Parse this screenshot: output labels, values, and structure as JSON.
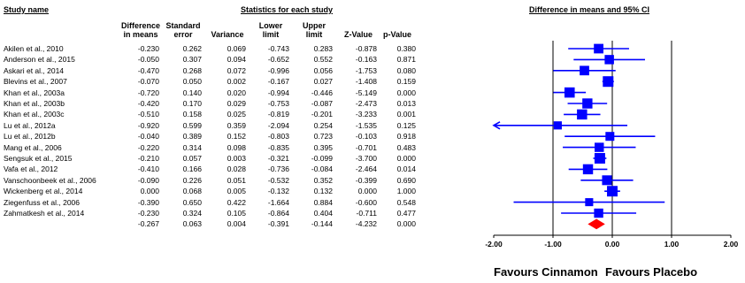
{
  "header": {
    "study_name": "Study name",
    "stats_title": "Statistics for each study",
    "plot_title": "Difference in means and 95% CI"
  },
  "columns": [
    {
      "line1": "Difference",
      "line2": "in means"
    },
    {
      "line1": "Standard",
      "line2": "error"
    },
    {
      "line1": "Variance",
      "line2": ""
    },
    {
      "line1": "Lower",
      "line2": "limit"
    },
    {
      "line1": "Upper",
      "line2": "limit"
    },
    {
      "line1": "Z-Value",
      "line2": ""
    },
    {
      "line1": "p-Value",
      "line2": ""
    }
  ],
  "rows": [
    {
      "study": "Akilen et al., 2010",
      "diff": "-0.230",
      "se": "0.262",
      "var": "0.069",
      "lower": "-0.743",
      "upper": "0.283",
      "z": "-0.878",
      "p": "0.380"
    },
    {
      "study": "Anderson et al., 2015",
      "diff": "-0.050",
      "se": "0.307",
      "var": "0.094",
      "lower": "-0.652",
      "upper": "0.552",
      "z": "-0.163",
      "p": "0.871"
    },
    {
      "study": "Askari et al., 2014",
      "diff": "-0.470",
      "se": "0.268",
      "var": "0.072",
      "lower": "-0.996",
      "upper": "0.056",
      "z": "-1.753",
      "p": "0.080"
    },
    {
      "study": "Blevins et al., 2007",
      "diff": "-0.070",
      "se": "0.050",
      "var": "0.002",
      "lower": "-0.167",
      "upper": "0.027",
      "z": "-1.408",
      "p": "0.159"
    },
    {
      "study": "Khan et al., 2003a",
      "diff": "-0.720",
      "se": "0.140",
      "var": "0.020",
      "lower": "-0.994",
      "upper": "-0.446",
      "z": "-5.149",
      "p": "0.000"
    },
    {
      "study": "Khan et al., 2003b",
      "diff": "-0.420",
      "se": "0.170",
      "var": "0.029",
      "lower": "-0.753",
      "upper": "-0.087",
      "z": "-2.473",
      "p": "0.013"
    },
    {
      "study": "Khan et al., 2003c",
      "diff": "-0.510",
      "se": "0.158",
      "var": "0.025",
      "lower": "-0.819",
      "upper": "-0.201",
      "z": "-3.233",
      "p": "0.001"
    },
    {
      "study": "Lu et al., 2012a",
      "diff": "-0.920",
      "se": "0.599",
      "var": "0.359",
      "lower": "-2.094",
      "upper": "0.254",
      "z": "-1.535",
      "p": "0.125"
    },
    {
      "study": "Lu et al., 2012b",
      "diff": "-0.040",
      "se": "0.389",
      "var": "0.152",
      "lower": "-0.803",
      "upper": "0.723",
      "z": "-0.103",
      "p": "0.918"
    },
    {
      "study": "Mang et al., 2006",
      "diff": "-0.220",
      "se": "0.314",
      "var": "0.098",
      "lower": "-0.835",
      "upper": "0.395",
      "z": "-0.701",
      "p": "0.483"
    },
    {
      "study": "Sengsuk et al., 2015",
      "diff": "-0.210",
      "se": "0.057",
      "var": "0.003",
      "lower": "-0.321",
      "upper": "-0.099",
      "z": "-3.700",
      "p": "0.000"
    },
    {
      "study": "Vafa et al., 2012",
      "diff": "-0.410",
      "se": "0.166",
      "var": "0.028",
      "lower": "-0.736",
      "upper": "-0.084",
      "z": "-2.464",
      "p": "0.014"
    },
    {
      "study": "Vanschoonbeek et al., 2006",
      "diff": "-0.090",
      "se": "0.226",
      "var": "0.051",
      "lower": "-0.532",
      "upper": "0.352",
      "z": "-0.399",
      "p": "0.690"
    },
    {
      "study": "Wickenberg et al., 2014",
      "diff": "0.000",
      "se": "0.068",
      "var": "0.005",
      "lower": "-0.132",
      "upper": "0.132",
      "z": "0.000",
      "p": "1.000"
    },
    {
      "study": "Ziegenfuss et al., 2006",
      "diff": "-0.390",
      "se": "0.650",
      "var": "0.422",
      "lower": "-1.664",
      "upper": "0.884",
      "z": "-0.600",
      "p": "0.548"
    },
    {
      "study": "Zahmatkesh et al., 2014",
      "diff": "-0.230",
      "se": "0.324",
      "var": "0.105",
      "lower": "-0.864",
      "upper": "0.404",
      "z": "-0.711",
      "p": "0.477"
    }
  ],
  "summary": {
    "study": "",
    "diff": "-0.267",
    "se": "0.063",
    "var": "0.004",
    "lower": "-0.391",
    "upper": "-0.144",
    "z": "-4.232",
    "p": "0.000"
  },
  "footer": {
    "left": "Favours Cinnamon",
    "right": "Favours Placebo"
  },
  "chart_data": {
    "type": "forest",
    "title": "Difference in means and 95% CI",
    "xlim": [
      -2.0,
      2.0
    ],
    "xticks": [
      -2.0,
      -1.0,
      0.0,
      1.0,
      2.0
    ],
    "tick_labels": [
      "-2.00",
      "-1.00",
      "0.00",
      "1.00",
      "2.00"
    ],
    "colors": {
      "study": "#0000ff",
      "summary": "#ff0000",
      "axis": "#000000"
    },
    "points": [
      {
        "study": "Akilen et al., 2010",
        "estimate": -0.23,
        "lower": -0.743,
        "upper": 0.283,
        "weight": 0.069
      },
      {
        "study": "Anderson et al., 2015",
        "estimate": -0.05,
        "lower": -0.652,
        "upper": 0.552,
        "weight": 0.094
      },
      {
        "study": "Askari et al., 2014",
        "estimate": -0.47,
        "lower": -0.996,
        "upper": 0.056,
        "weight": 0.072
      },
      {
        "study": "Blevins et al., 2007",
        "estimate": -0.07,
        "lower": -0.167,
        "upper": 0.027,
        "weight": 0.002
      },
      {
        "study": "Khan et al., 2003a",
        "estimate": -0.72,
        "lower": -0.994,
        "upper": -0.446,
        "weight": 0.02
      },
      {
        "study": "Khan et al., 2003b",
        "estimate": -0.42,
        "lower": -0.753,
        "upper": -0.087,
        "weight": 0.029
      },
      {
        "study": "Khan et al., 2003c",
        "estimate": -0.51,
        "lower": -0.819,
        "upper": -0.201,
        "weight": 0.025
      },
      {
        "study": "Lu et al., 2012a",
        "estimate": -0.92,
        "lower": -2.094,
        "upper": 0.254,
        "weight": 0.359
      },
      {
        "study": "Lu et al., 2012b",
        "estimate": -0.04,
        "lower": -0.803,
        "upper": 0.723,
        "weight": 0.152
      },
      {
        "study": "Mang et al., 2006",
        "estimate": -0.22,
        "lower": -0.835,
        "upper": 0.395,
        "weight": 0.098
      },
      {
        "study": "Sengsuk et al., 2015",
        "estimate": -0.21,
        "lower": -0.321,
        "upper": -0.099,
        "weight": 0.003
      },
      {
        "study": "Vafa et al., 2012",
        "estimate": -0.41,
        "lower": -0.736,
        "upper": -0.084,
        "weight": 0.028
      },
      {
        "study": "Vanschoonbeek et al., 2006",
        "estimate": -0.09,
        "lower": -0.532,
        "upper": 0.352,
        "weight": 0.051
      },
      {
        "study": "Wickenberg et al., 2014",
        "estimate": 0.0,
        "lower": -0.132,
        "upper": 0.132,
        "weight": 0.005
      },
      {
        "study": "Ziegenfuss et al., 2006",
        "estimate": -0.39,
        "lower": -1.664,
        "upper": 0.884,
        "weight": 0.422
      },
      {
        "study": "Zahmatkesh et al., 2014",
        "estimate": -0.23,
        "lower": -0.864,
        "upper": 0.404,
        "weight": 0.105
      }
    ],
    "summary": {
      "estimate": -0.267,
      "lower": -0.391,
      "upper": -0.144
    }
  }
}
